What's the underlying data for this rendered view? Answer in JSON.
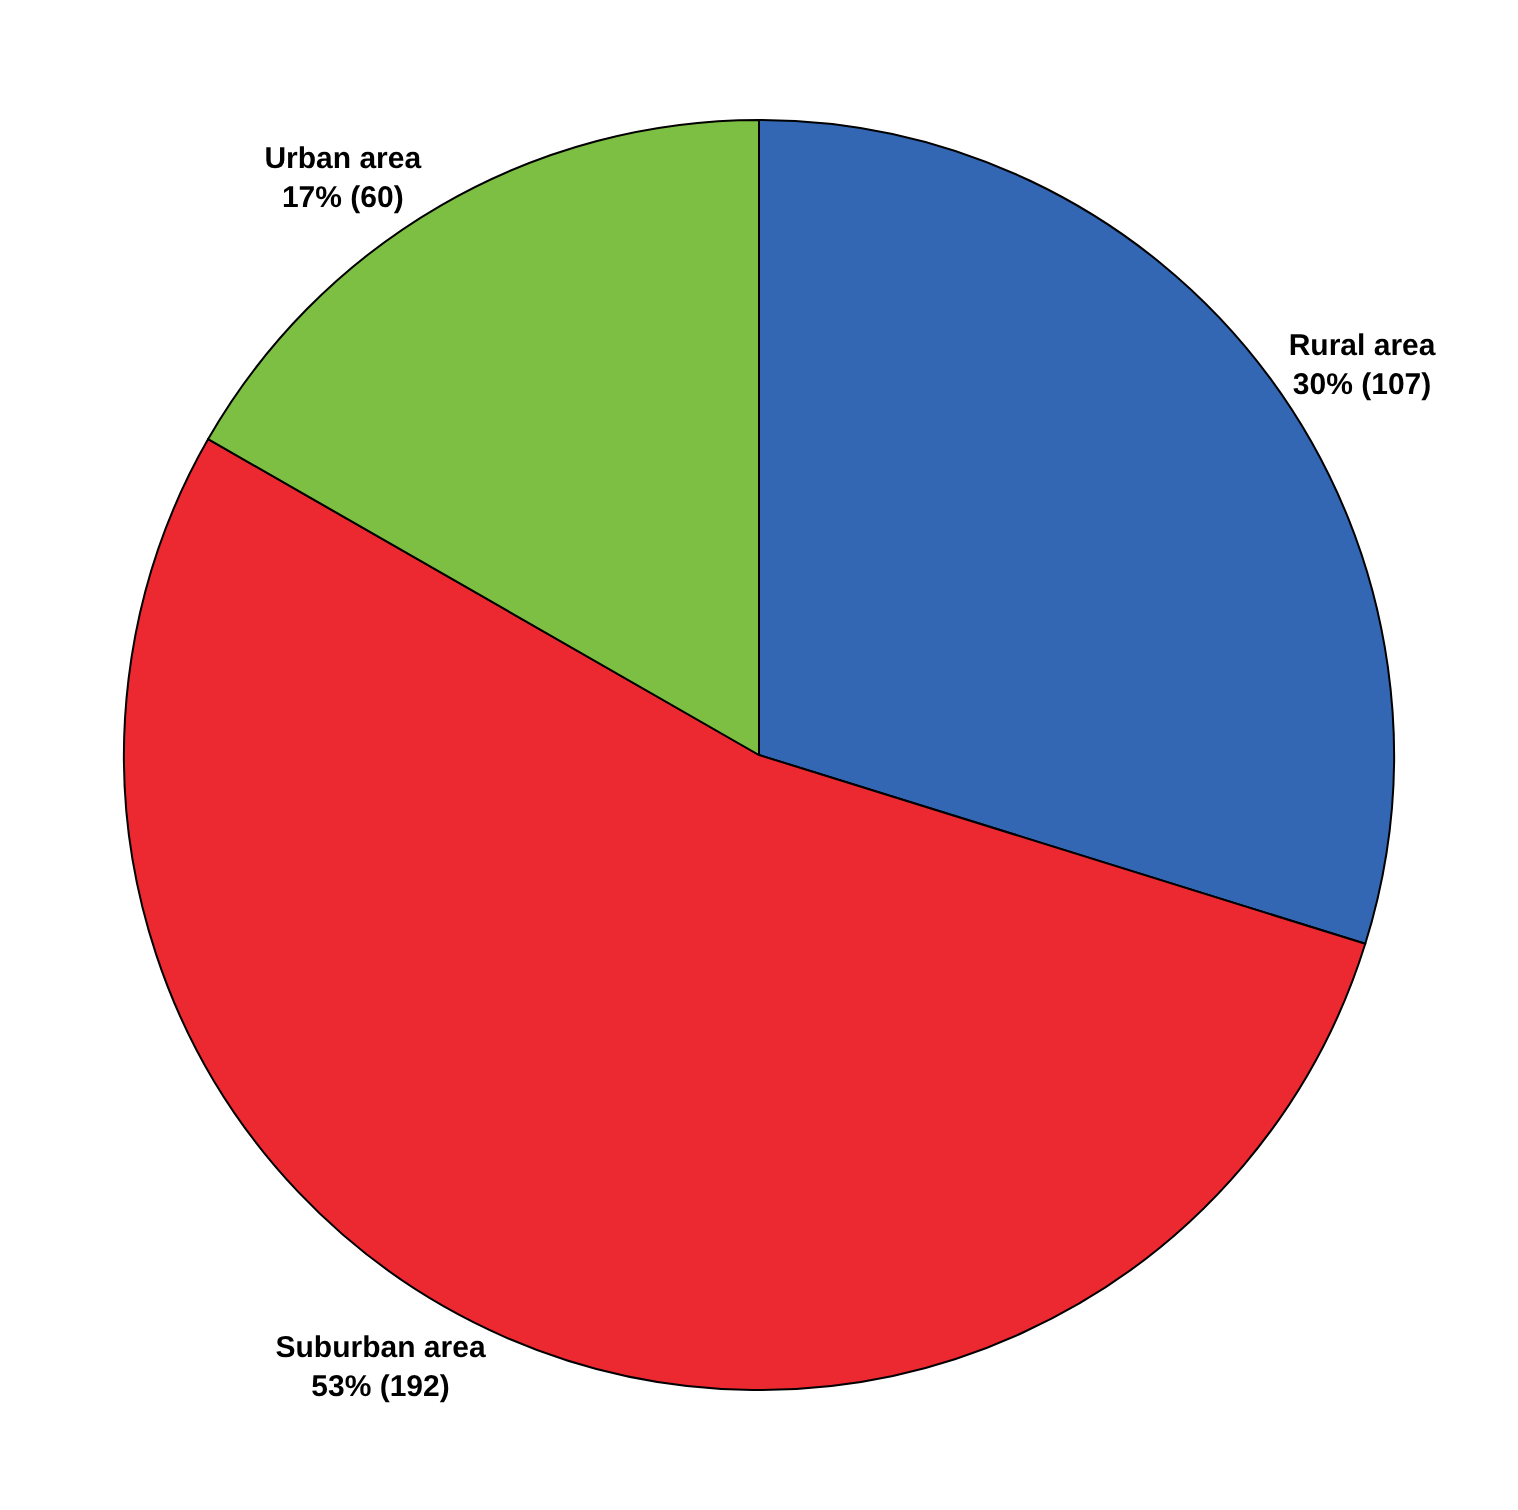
{
  "chart_data": {
    "type": "pie",
    "categories": [
      "Rural area",
      "Suburban area",
      "Urban area"
    ],
    "values": [
      107,
      192,
      60
    ],
    "colors": [
      "#3366b3",
      "#ec2830",
      "#7dbf42"
    ],
    "value_labels": [
      "30% (107)",
      "53% (192)",
      "17% (60)"
    ]
  }
}
